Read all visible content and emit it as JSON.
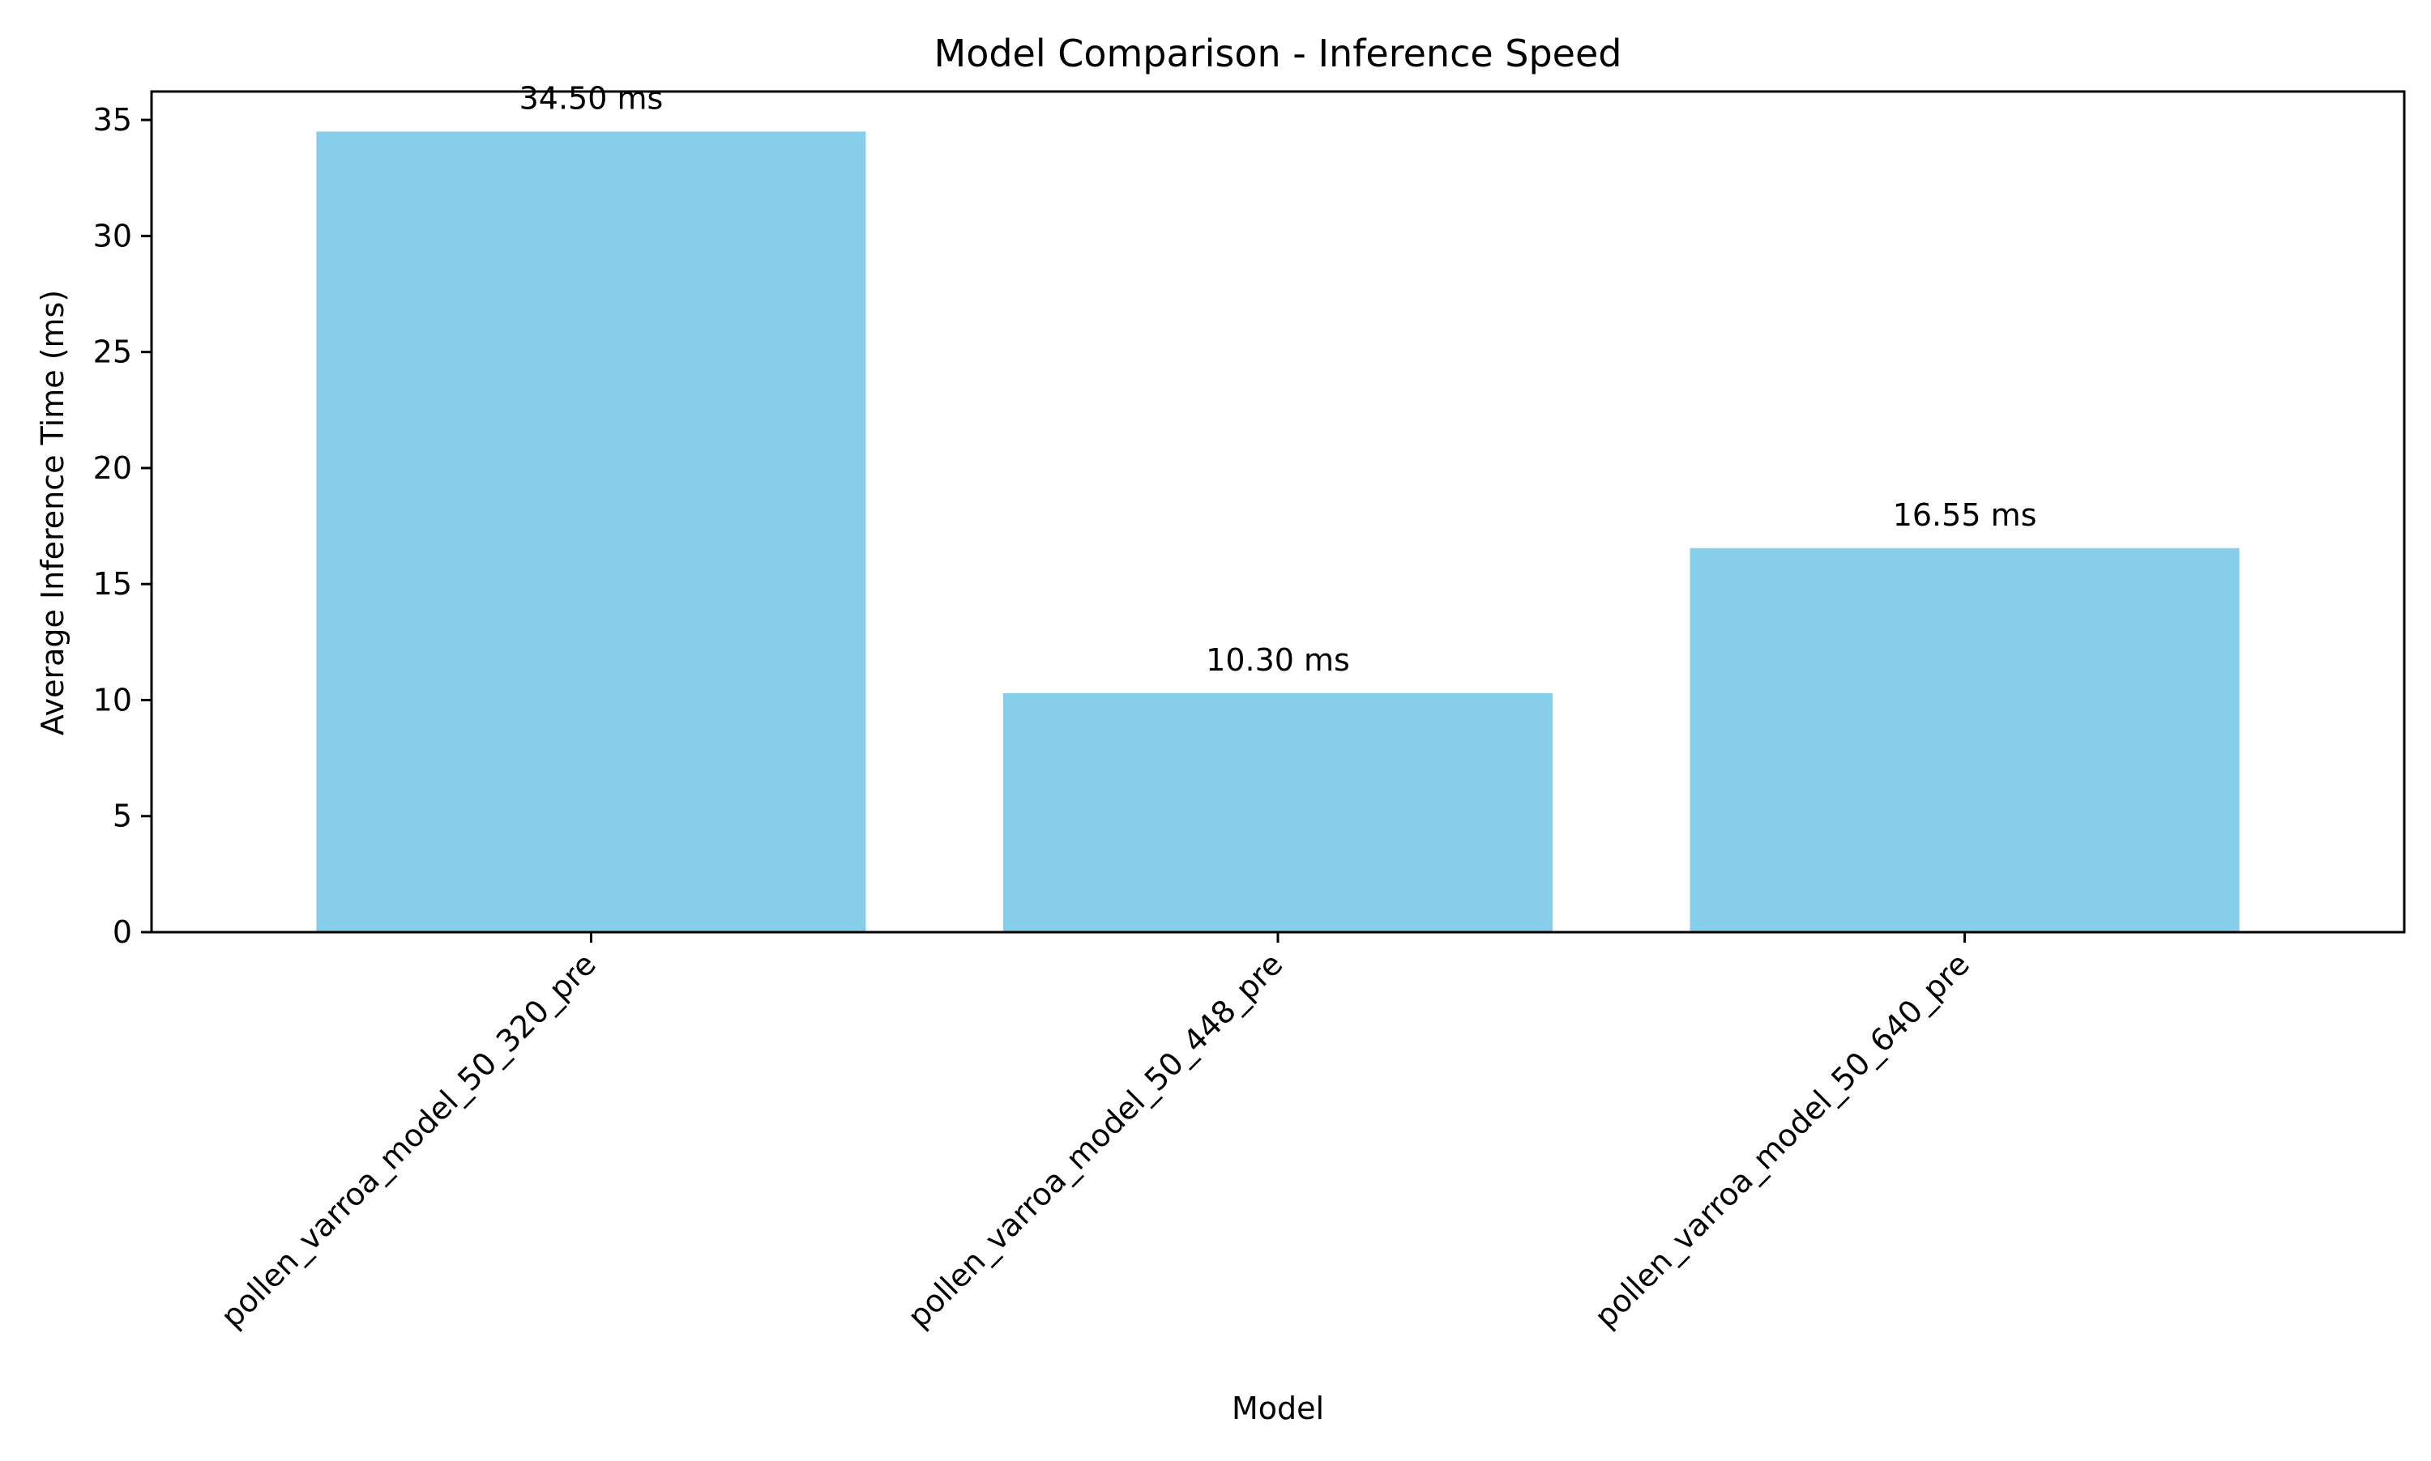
{
  "chart_data": {
    "type": "bar",
    "title": "Model Comparison - Inference Speed",
    "xlabel": "Model",
    "ylabel": "Average Inference Time (ms)",
    "categories": [
      "pollen_varroa_model_50_320_pre",
      "pollen_varroa_model_50_448_pre",
      "pollen_varroa_model_50_640_pre"
    ],
    "values": [
      34.5,
      10.3,
      16.55
    ],
    "value_labels": [
      "34.50 ms",
      "10.30 ms",
      "16.55 ms"
    ],
    "ylim": [
      0,
      36.225
    ],
    "yticks": [
      0,
      5,
      10,
      15,
      20,
      25,
      30,
      35
    ],
    "ytick_labels": [
      "0",
      "5",
      "10",
      "15",
      "20",
      "25",
      "30",
      "35"
    ],
    "grid": false,
    "legend": "none",
    "bar_color": "#87CEEB",
    "tick_label_rotation": 45
  }
}
